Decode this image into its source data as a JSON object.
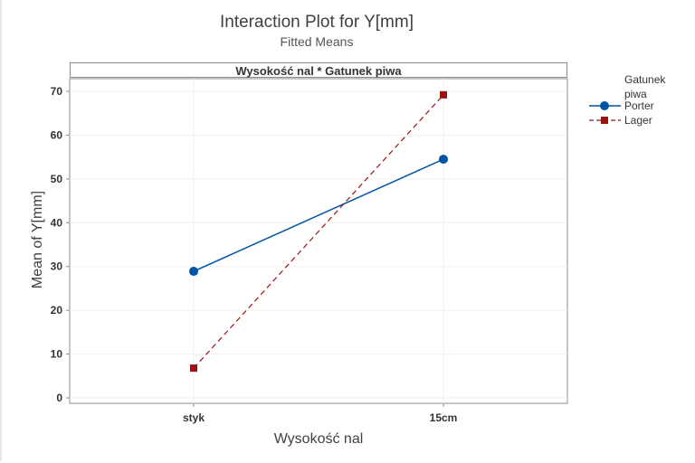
{
  "chart_data": {
    "type": "line",
    "title": "Interaction Plot for Y[mm]",
    "subtitle": "Fitted Means",
    "panel_label": "Wysokość nal * Gatunek piwa",
    "xlabel": "Wysokość nal",
    "ylabel": "Mean of Y[mm]",
    "categories": [
      "styk",
      "15cm"
    ],
    "yticks": [
      0,
      10,
      20,
      30,
      40,
      50,
      60,
      70
    ],
    "ylim": [
      -1,
      73
    ],
    "grid": true,
    "legend": {
      "title": "Gatunek piwa",
      "position": "right"
    },
    "series": [
      {
        "name": "Porter",
        "values": [
          28.9,
          54.5
        ],
        "color": "#0054a6",
        "marker": "circle",
        "line": "solid"
      },
      {
        "name": "Lager",
        "values": [
          6.8,
          69.2
        ],
        "color": "#9b1313",
        "marker": "square",
        "line": "dashed"
      }
    ]
  },
  "labels": {
    "title": "Interaction Plot for Y[mm]",
    "subtitle": "Fitted Means",
    "panel": "Wysokość nal * Gatunek piwa",
    "xlabel": "Wysokość nal",
    "ylabel": "Mean of Y[mm]",
    "legend_title_1": "Gatunek",
    "legend_title_2": "piwa",
    "legend_porter": "Porter",
    "legend_lager": "Lager"
  }
}
